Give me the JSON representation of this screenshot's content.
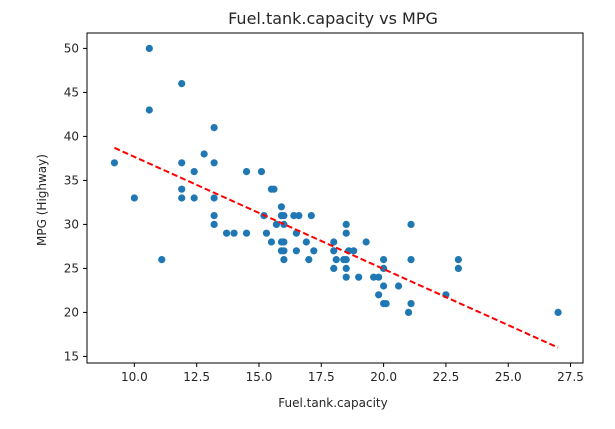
{
  "chart_data": {
    "type": "scatter",
    "title": "Fuel.tank.capacity vs MPG",
    "xlabel": "Fuel.tank.capacity",
    "ylabel": "MPG (Highway)",
    "xlim": [
      8.1,
      28.0
    ],
    "ylim": [
      14.25,
      51.75
    ],
    "x_ticks": [
      10.0,
      12.5,
      15.0,
      17.5,
      20.0,
      22.5,
      25.0,
      27.5
    ],
    "x_tick_labels": [
      "10.0",
      "12.5",
      "15.0",
      "17.5",
      "20.0",
      "22.5",
      "25.0",
      "27.5"
    ],
    "y_ticks": [
      15,
      20,
      25,
      30,
      35,
      40,
      45,
      50
    ],
    "y_tick_labels": [
      "15",
      "20",
      "25",
      "30",
      "35",
      "40",
      "45",
      "50"
    ],
    "grid": false,
    "legend": "none",
    "point_color": "#1f77b4",
    "line_color": "#ff0000",
    "points": [
      [
        9.2,
        37
      ],
      [
        10.0,
        33
      ],
      [
        10.6,
        50
      ],
      [
        10.6,
        43
      ],
      [
        11.1,
        26
      ],
      [
        11.9,
        46
      ],
      [
        11.9,
        37
      ],
      [
        11.9,
        34
      ],
      [
        11.9,
        33
      ],
      [
        12.4,
        36
      ],
      [
        12.4,
        33
      ],
      [
        12.8,
        38
      ],
      [
        13.2,
        41
      ],
      [
        13.2,
        37
      ],
      [
        13.2,
        33
      ],
      [
        13.2,
        31
      ],
      [
        13.2,
        30
      ],
      [
        13.7,
        29
      ],
      [
        14.0,
        29
      ],
      [
        14.5,
        36
      ],
      [
        14.5,
        29
      ],
      [
        15.1,
        36
      ],
      [
        15.2,
        31
      ],
      [
        15.3,
        29
      ],
      [
        15.5,
        34
      ],
      [
        15.6,
        34
      ],
      [
        15.5,
        28
      ],
      [
        15.7,
        30
      ],
      [
        15.9,
        32
      ],
      [
        15.9,
        31
      ],
      [
        15.9,
        28
      ],
      [
        15.9,
        27
      ],
      [
        16.0,
        31
      ],
      [
        16.0,
        30
      ],
      [
        16.0,
        28
      ],
      [
        16.0,
        27
      ],
      [
        16.0,
        26
      ],
      [
        16.4,
        31
      ],
      [
        16.6,
        31
      ],
      [
        16.5,
        29
      ],
      [
        16.5,
        27
      ],
      [
        16.9,
        28
      ],
      [
        17.0,
        26
      ],
      [
        17.1,
        31
      ],
      [
        17.2,
        27
      ],
      [
        18.0,
        28
      ],
      [
        18.0,
        27
      ],
      [
        18.1,
        26
      ],
      [
        18.0,
        25
      ],
      [
        18.5,
        30
      ],
      [
        18.5,
        29
      ],
      [
        18.4,
        26
      ],
      [
        18.5,
        26
      ],
      [
        18.6,
        27
      ],
      [
        18.5,
        25
      ],
      [
        18.5,
        24
      ],
      [
        18.8,
        27
      ],
      [
        19.0,
        24
      ],
      [
        19.3,
        28
      ],
      [
        19.6,
        24
      ],
      [
        19.8,
        24
      ],
      [
        19.8,
        22
      ],
      [
        20.0,
        26
      ],
      [
        20.0,
        25
      ],
      [
        20.0,
        23
      ],
      [
        20.0,
        21
      ],
      [
        20.1,
        21
      ],
      [
        20.6,
        23
      ],
      [
        21.0,
        20
      ],
      [
        21.1,
        30
      ],
      [
        21.1,
        26
      ],
      [
        21.1,
        21
      ],
      [
        22.5,
        22
      ],
      [
        23.0,
        26
      ],
      [
        23.0,
        25
      ],
      [
        27.0,
        20
      ]
    ],
    "fit_line": {
      "style": "dashed",
      "x": [
        9.2,
        27.0
      ],
      "y": [
        38.7,
        16.0
      ]
    }
  }
}
